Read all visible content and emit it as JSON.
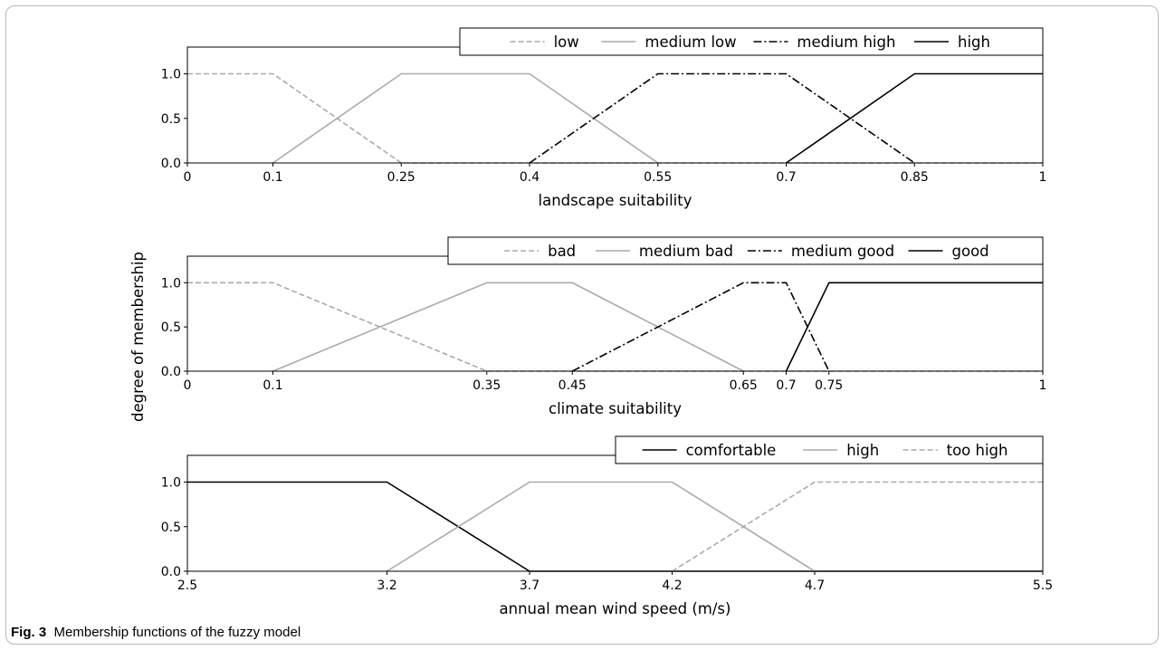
{
  "caption": {
    "label": "Fig. 3",
    "text": "Membership functions of the fuzzy model"
  },
  "shared_ylabel": "degree of membership",
  "chart_data": [
    {
      "type": "line",
      "xlabel": "landscape suitability",
      "ylabel": "degree of membership",
      "xlim": [
        0,
        1
      ],
      "ylim": [
        0,
        1.3
      ],
      "xticks": [
        {
          "value": 0,
          "label": "0"
        },
        {
          "value": 0.1,
          "label": "0.1"
        },
        {
          "value": 0.25,
          "label": "0.25"
        },
        {
          "value": 0.4,
          "label": "0.4"
        },
        {
          "value": 0.55,
          "label": "0.55"
        },
        {
          "value": 0.7,
          "label": "0.7"
        },
        {
          "value": 0.85,
          "label": "0.85"
        },
        {
          "value": 1,
          "label": "1"
        }
      ],
      "yticks": [
        {
          "value": 0,
          "label": "0.0"
        },
        {
          "value": 0.5,
          "label": "0.5"
        },
        {
          "value": 1,
          "label": "1.0"
        }
      ],
      "legend_position": "top-right",
      "series": [
        {
          "name": "low",
          "color": "#aaaaaa",
          "style": "dashed",
          "x": [
            0,
            0.1,
            0.25,
            1
          ],
          "y": [
            1,
            1,
            0,
            0
          ]
        },
        {
          "name": "medium low",
          "color": "#aaaaaa",
          "style": "solid",
          "x": [
            0.1,
            0.25,
            0.4,
            0.55
          ],
          "y": [
            0,
            1,
            1,
            0
          ]
        },
        {
          "name": "medium high",
          "color": "#000000",
          "style": "dashdot",
          "x": [
            0.4,
            0.55,
            0.7,
            0.85
          ],
          "y": [
            0,
            1,
            1,
            0
          ]
        },
        {
          "name": "high",
          "color": "#000000",
          "style": "solid",
          "x": [
            0.7,
            0.85,
            1
          ],
          "y": [
            0,
            1,
            1
          ]
        }
      ]
    },
    {
      "type": "line",
      "xlabel": "climate suitability",
      "ylabel": "degree of membership",
      "xlim": [
        0,
        1
      ],
      "ylim": [
        0,
        1.3
      ],
      "xticks": [
        {
          "value": 0,
          "label": "0"
        },
        {
          "value": 0.1,
          "label": "0.1"
        },
        {
          "value": 0.35,
          "label": "0.35"
        },
        {
          "value": 0.45,
          "label": "0.45"
        },
        {
          "value": 0.65,
          "label": "0.65"
        },
        {
          "value": 0.7,
          "label": "0.7"
        },
        {
          "value": 0.75,
          "label": "0.75"
        },
        {
          "value": 1,
          "label": "1"
        }
      ],
      "yticks": [
        {
          "value": 0,
          "label": "0.0"
        },
        {
          "value": 0.5,
          "label": "0.5"
        },
        {
          "value": 1,
          "label": "1.0"
        }
      ],
      "legend_position": "top-right",
      "series": [
        {
          "name": "bad",
          "color": "#aaaaaa",
          "style": "dashed",
          "x": [
            0,
            0.1,
            0.35,
            1
          ],
          "y": [
            1,
            1,
            0,
            0
          ]
        },
        {
          "name": "medium bad",
          "color": "#aaaaaa",
          "style": "solid",
          "x": [
            0.1,
            0.35,
            0.45,
            0.65
          ],
          "y": [
            0,
            1,
            1,
            0
          ]
        },
        {
          "name": "medium good",
          "color": "#000000",
          "style": "dashdot",
          "x": [
            0.45,
            0.65,
            0.7,
            0.75
          ],
          "y": [
            0,
            1,
            1,
            0
          ]
        },
        {
          "name": "good",
          "color": "#000000",
          "style": "solid",
          "x": [
            0.7,
            0.75,
            1
          ],
          "y": [
            0,
            1,
            1
          ]
        }
      ]
    },
    {
      "type": "line",
      "xlabel": "annual mean wind speed (m/s)",
      "ylabel": "degree of membership",
      "xlim": [
        2.5,
        5.5
      ],
      "ylim": [
        0,
        1.3
      ],
      "xticks": [
        {
          "value": 2.5,
          "label": "2.5"
        },
        {
          "value": 3.2,
          "label": "3.2"
        },
        {
          "value": 3.7,
          "label": "3.7"
        },
        {
          "value": 4.2,
          "label": "4.2"
        },
        {
          "value": 4.7,
          "label": "4.7"
        },
        {
          "value": 5.5,
          "label": "5.5"
        }
      ],
      "yticks": [
        {
          "value": 0,
          "label": "0.0"
        },
        {
          "value": 0.5,
          "label": "0.5"
        },
        {
          "value": 1,
          "label": "1.0"
        }
      ],
      "legend_position": "top-right",
      "series": [
        {
          "name": "comfortable",
          "color": "#000000",
          "style": "solid",
          "x": [
            2.5,
            3.2,
            3.7,
            5.5
          ],
          "y": [
            1,
            1,
            0,
            0
          ]
        },
        {
          "name": "high",
          "color": "#aaaaaa",
          "style": "solid",
          "x": [
            3.2,
            3.7,
            4.2,
            4.7
          ],
          "y": [
            0,
            1,
            1,
            0
          ]
        },
        {
          "name": "too high",
          "color": "#aaaaaa",
          "style": "dashed",
          "x": [
            4.2,
            4.7,
            5.5
          ],
          "y": [
            0,
            1,
            1
          ]
        }
      ]
    }
  ]
}
